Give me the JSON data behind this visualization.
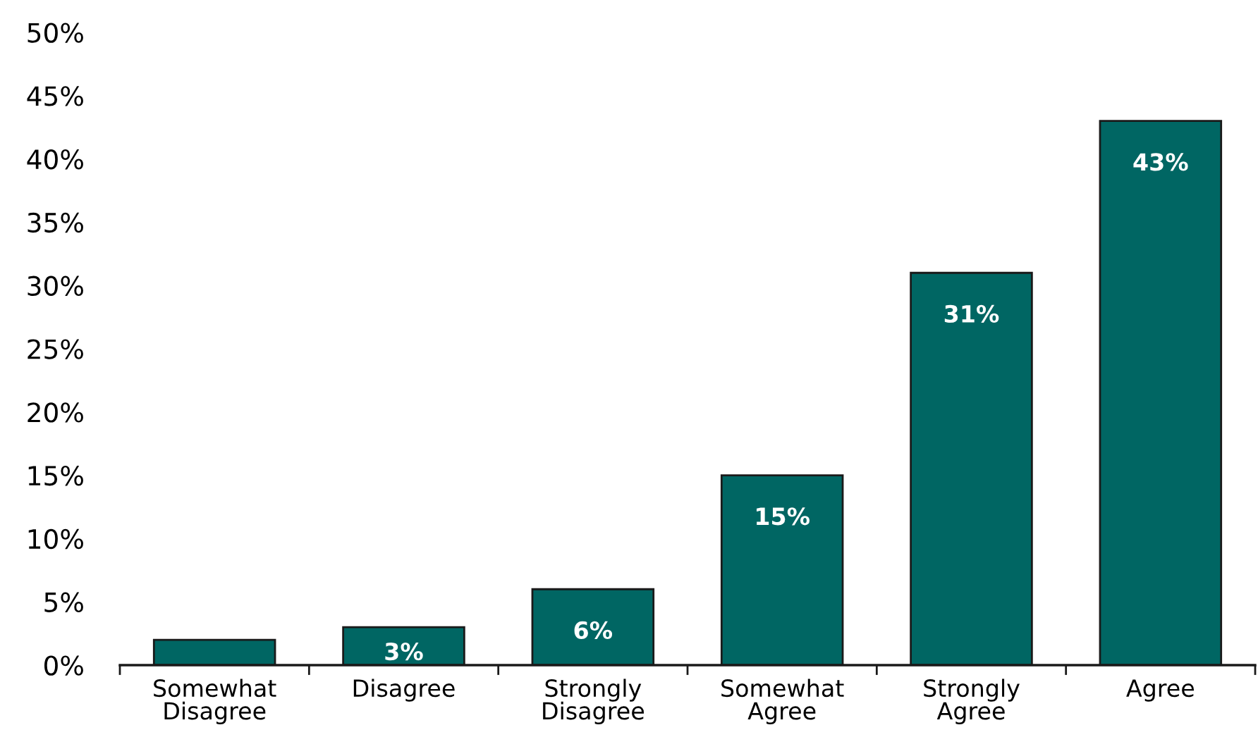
{
  "chart_data": {
    "type": "bar",
    "categories": [
      "Somewhat Disagree",
      "Disagree",
      "Strongly Disagree",
      "Somewhat Agree",
      "Strongly Agree",
      "Agree"
    ],
    "values": [
      2,
      3,
      6,
      15,
      31,
      43
    ],
    "value_labels": [
      null,
      "3%",
      "6%",
      "15%",
      "31%",
      "43%"
    ],
    "color": "#006663",
    "ylim": [
      0,
      50
    ],
    "yticks": [
      {
        "value": 0,
        "label": "0%"
      },
      {
        "value": 5,
        "label": "5%"
      },
      {
        "value": 10,
        "label": "10%"
      },
      {
        "value": 15,
        "label": "15%"
      },
      {
        "value": 20,
        "label": "20%"
      },
      {
        "value": 25,
        "label": "25%"
      },
      {
        "value": 30,
        "label": "30%"
      },
      {
        "value": 35,
        "label": "35%"
      },
      {
        "value": 40,
        "label": "40%"
      },
      {
        "value": 45,
        "label": "45%"
      },
      {
        "value": 50,
        "label": "50%"
      }
    ],
    "grid": false
  }
}
